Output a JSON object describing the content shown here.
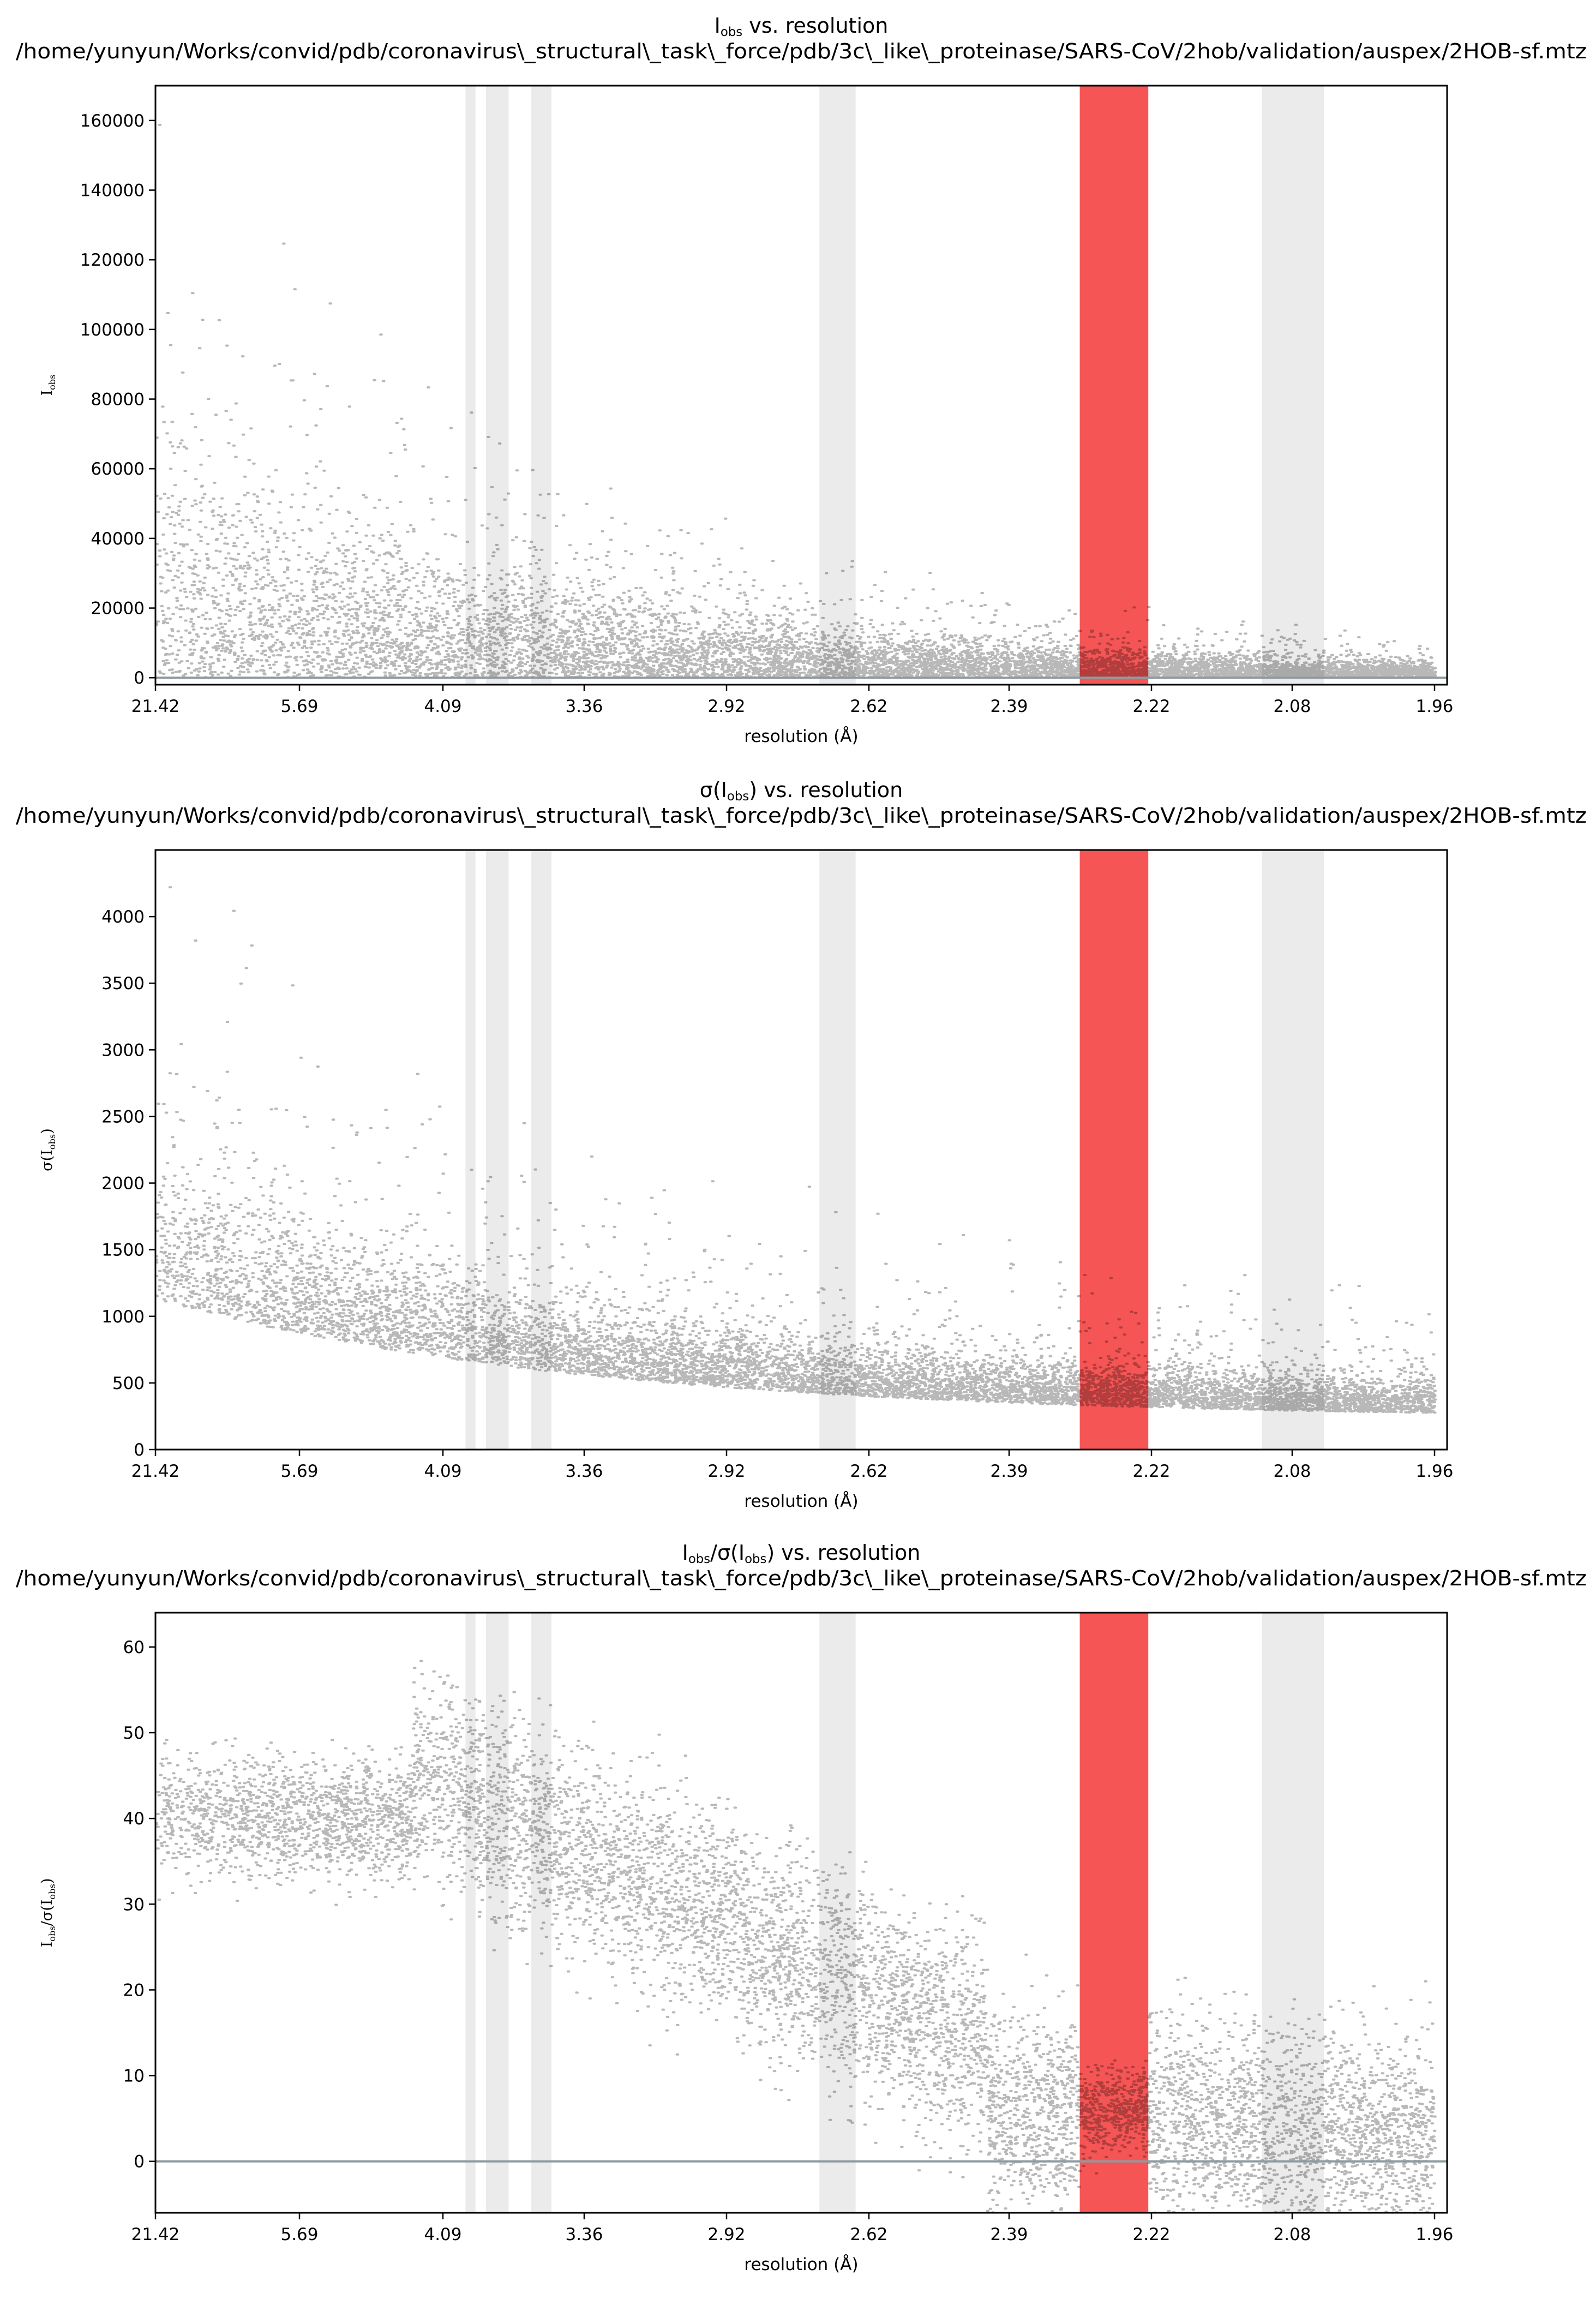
{
  "chart_data": [
    {
      "type": "scatter",
      "title_line1": "I_obs vs. resolution",
      "title_line2": "/home/yunyun/Works/convid/pdb/coronavirus\\_structural\\_task\\_force/pdb/3c\\_like\\_proteinase/SARS-CoV/2hob/validation/auspex/2HOB-sf.mtz",
      "xlabel": "resolution (Å)",
      "ylabel": "I_obs",
      "x_tick_labels": [
        "21.42",
        "5.69",
        "4.09",
        "3.36",
        "2.92",
        "2.62",
        "2.39",
        "2.22",
        "2.08",
        "1.96"
      ],
      "x_range_res": [
        21.42,
        1.96
      ],
      "ylim": [
        -2000,
        170000
      ],
      "y_ticks": [
        0,
        20000,
        40000,
        60000,
        80000,
        100000,
        120000,
        140000,
        160000
      ],
      "baseline": 0,
      "ice_rings_A": [
        [
          3.93,
          3.87
        ],
        [
          3.81,
          3.69
        ],
        [
          3.58,
          3.49
        ],
        [
          2.71,
          2.64
        ]
      ],
      "flagged_ring_A": [
        2.302,
        2.222
      ],
      "extra_ring_A": [
        2.106,
        2.05
      ],
      "point_color": "#000000",
      "ring_color": "#ebebeb",
      "flag_color": "#f55555",
      "baseline_color": "#8d9ba1"
    },
    {
      "type": "scatter",
      "title_line1": "σ(I_obs) vs. resolution",
      "title_line2": "/home/yunyun/Works/convid/pdb/coronavirus\\_structural\\_task\\_force/pdb/3c\\_like\\_proteinase/SARS-CoV/2hob/validation/auspex/2HOB-sf.mtz",
      "xlabel": "resolution (Å)",
      "ylabel": "σ(I_obs)",
      "x_tick_labels": [
        "21.42",
        "5.69",
        "4.09",
        "3.36",
        "2.92",
        "2.62",
        "2.39",
        "2.22",
        "2.08",
        "1.96"
      ],
      "x_range_res": [
        21.42,
        1.96
      ],
      "ylim": [
        0,
        4500
      ],
      "y_ticks": [
        0,
        500,
        1000,
        1500,
        2000,
        2500,
        3000,
        3500,
        4000
      ],
      "ice_rings_A": [
        [
          3.93,
          3.87
        ],
        [
          3.81,
          3.69
        ],
        [
          3.58,
          3.49
        ],
        [
          2.71,
          2.64
        ]
      ],
      "flagged_ring_A": [
        2.302,
        2.222
      ],
      "extra_ring_A": [
        2.106,
        2.05
      ],
      "point_color": "#000000",
      "ring_color": "#ebebeb",
      "flag_color": "#f55555"
    },
    {
      "type": "scatter",
      "title_line1": "I_obs/σ(I_obs) vs. resolution",
      "title_line2": "/home/yunyun/Works/convid/pdb/coronavirus\\_structural\\_task\\_force/pdb/3c\\_like\\_proteinase/SARS-CoV/2hob/validation/auspex/2HOB-sf.mtz",
      "xlabel": "resolution (Å)",
      "ylabel": "I_obs/σ(I_obs)",
      "x_tick_labels": [
        "21.42",
        "5.69",
        "4.09",
        "3.36",
        "2.92",
        "2.62",
        "2.39",
        "2.22",
        "2.08",
        "1.96"
      ],
      "x_range_res": [
        21.42,
        1.96
      ],
      "ylim": [
        -6,
        64
      ],
      "y_ticks": [
        0,
        10,
        20,
        30,
        40,
        50,
        60
      ],
      "baseline": 0,
      "ice_rings_A": [
        [
          3.93,
          3.87
        ],
        [
          3.81,
          3.69
        ],
        [
          3.58,
          3.49
        ],
        [
          2.71,
          2.64
        ]
      ],
      "flagged_ring_A": [
        2.302,
        2.222
      ],
      "extra_ring_A": [
        2.106,
        2.05
      ],
      "point_color": "#000000",
      "ring_color": "#ebebeb",
      "flag_color": "#f55555",
      "baseline_color": "#8d9ba1"
    }
  ]
}
